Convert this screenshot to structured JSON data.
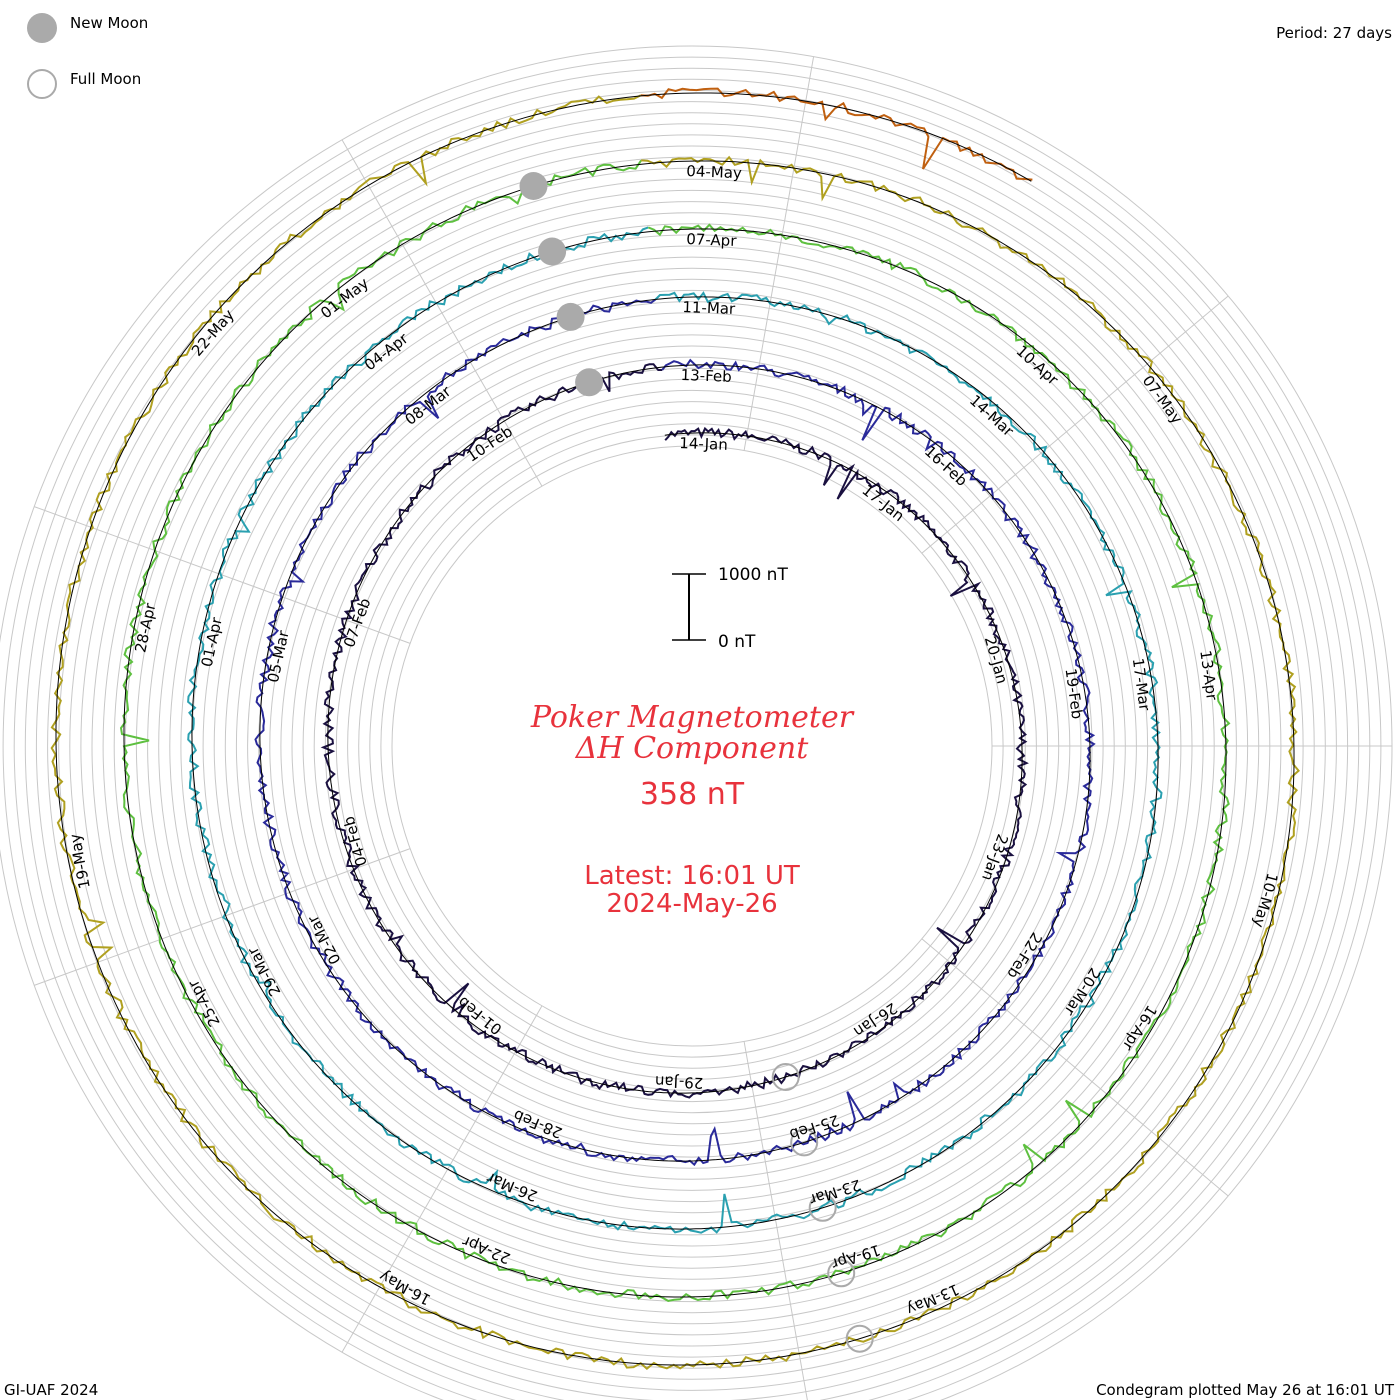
{
  "chart_data": {
    "type": "condegram",
    "title": "Poker Magnetometer",
    "subtitle": "ΔH Component",
    "current_value": "358 nT",
    "latest_time": "Latest: 16:01 UT",
    "latest_date": "2024-May-26",
    "period": "Period: 27 days",
    "scale": {
      "top_label": "1000 nT",
      "bottom_label": "0 nT"
    },
    "legend": [
      {
        "name": "New Moon",
        "symbol": "filled-circle",
        "color": "#aaaaaa"
      },
      {
        "name": "Full Moon",
        "symbol": "open-circle",
        "color": "#aaaaaa"
      }
    ],
    "footer_left": "GI-UAF 2024",
    "footer_right": "Condegram plotted May 26 at 16:01 UT",
    "ring_colors": [
      "#1a1040",
      "#2a2a9a",
      "#2aa0b0",
      "#5ec040",
      "#b0a020",
      "#c06010"
    ],
    "rotations": [
      {
        "color": "#1a1040",
        "dates": [
          "14-Jan",
          "17-Jan",
          "20-Jan",
          "23-Jan",
          "26-Jan",
          "29-Jan",
          "01-Feb",
          "04-Feb",
          "07-Feb",
          "10-Feb"
        ]
      },
      {
        "color": "#2a2a9a",
        "dates": [
          "13-Feb",
          "16-Feb",
          "19-Feb",
          "22-Feb",
          "25-Feb",
          "28-Feb",
          "02-Mar",
          "05-Mar",
          "08-Mar"
        ]
      },
      {
        "color": "#2aa0b0",
        "dates": [
          "11-Mar",
          "14-Mar",
          "17-Mar",
          "20-Mar",
          "23-Mar",
          "26-Mar",
          "29-Mar",
          "01-Apr",
          "04-Apr"
        ]
      },
      {
        "color": "#5ec040",
        "dates": [
          "07-Apr",
          "10-Apr",
          "13-Apr",
          "16-Apr",
          "19-Apr",
          "22-Apr",
          "25-Apr",
          "28-Apr",
          "01-May"
        ]
      },
      {
        "color": "#c06010",
        "dates": [
          "04-May",
          "07-May",
          "10-May",
          "13-May",
          "16-May",
          "19-May",
          "22-May"
        ]
      }
    ],
    "new_moons": [
      "10-Feb",
      "10-Mar",
      "08-Apr",
      "08-May"
    ],
    "full_moons": [
      "25-Jan",
      "24-Feb",
      "25-Mar",
      "23-Apr",
      "23-May"
    ]
  }
}
